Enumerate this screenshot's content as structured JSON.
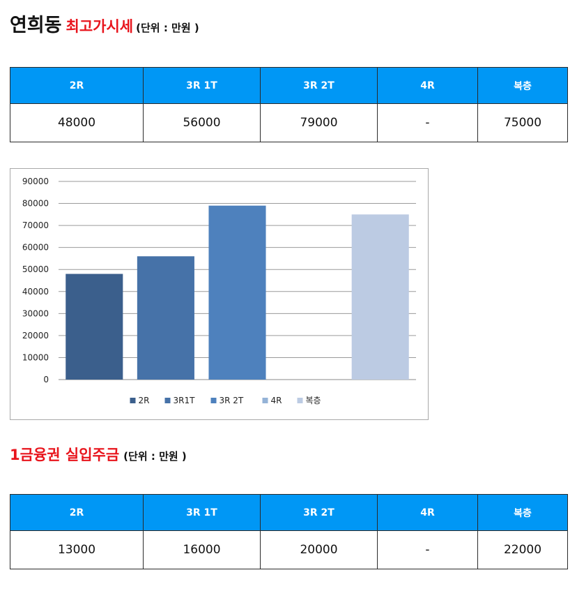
{
  "section1": {
    "place": "연희동",
    "title": "최고가시세",
    "unit": "(단위 : 만원 )"
  },
  "table1": {
    "headers": [
      "2R",
      "3R 1T",
      "3R 2T",
      "4R",
      "복층"
    ],
    "values": [
      "48000",
      "56000",
      "79000",
      "-",
      "75000"
    ]
  },
  "chart_data": {
    "type": "bar",
    "categories": [
      "2R",
      "3R1T",
      "3R 2T",
      "4R",
      "복층"
    ],
    "values": [
      48000,
      56000,
      79000,
      null,
      75000
    ],
    "colors": [
      "#3b5f8c",
      "#4672a8",
      "#4e81bd",
      "#95b3d7",
      "#bccbe3"
    ],
    "ylim": [
      0,
      90000
    ],
    "yticks": [
      0,
      10000,
      20000,
      30000,
      40000,
      50000,
      60000,
      70000,
      80000,
      90000
    ],
    "grid": true,
    "legend": "bottom"
  },
  "section2": {
    "title": "1금융권 실입주금",
    "unit": "(단위 : 만원 )"
  },
  "table2": {
    "headers": [
      "2R",
      "3R 1T",
      "3R 2T",
      "4R",
      "복층"
    ],
    "values": [
      "13000",
      "16000",
      "20000",
      "-",
      "22000"
    ]
  }
}
